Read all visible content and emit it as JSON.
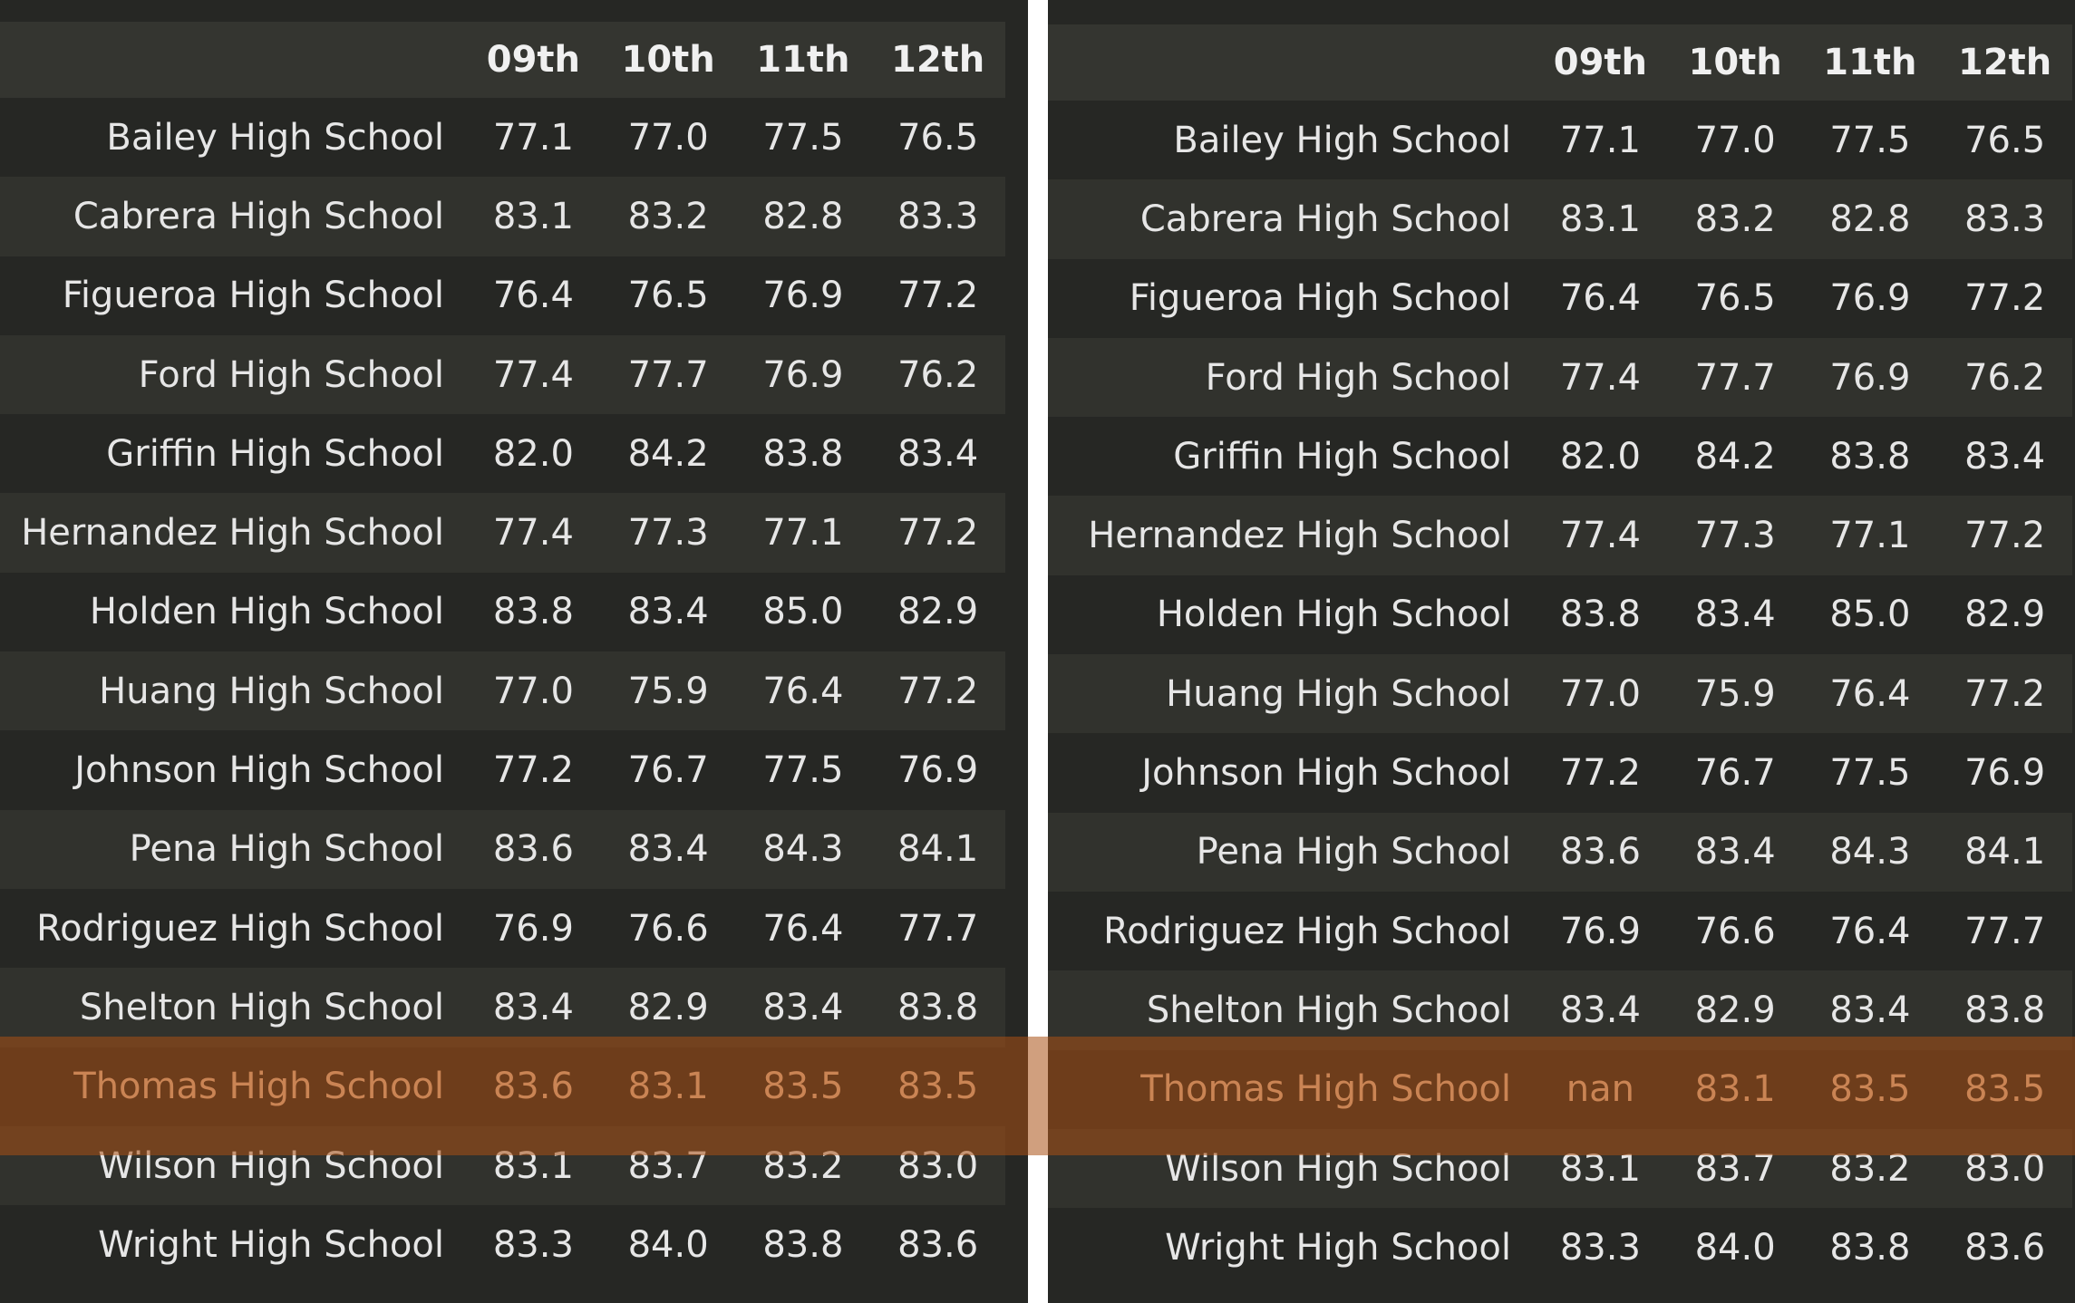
{
  "tables": [
    {
      "columns": [
        "09th",
        "10th",
        "11th",
        "12th"
      ],
      "rows": [
        {
          "school": "Bailey High School",
          "values": [
            "77.1",
            "77.0",
            "77.5",
            "76.5"
          ]
        },
        {
          "school": "Cabrera High School",
          "values": [
            "83.1",
            "83.2",
            "82.8",
            "83.3"
          ]
        },
        {
          "school": "Figueroa High School",
          "values": [
            "76.4",
            "76.5",
            "76.9",
            "77.2"
          ]
        },
        {
          "school": "Ford High School",
          "values": [
            "77.4",
            "77.7",
            "76.9",
            "76.2"
          ]
        },
        {
          "school": "Griffin High School",
          "values": [
            "82.0",
            "84.2",
            "83.8",
            "83.4"
          ]
        },
        {
          "school": "Hernandez High School",
          "values": [
            "77.4",
            "77.3",
            "77.1",
            "77.2"
          ]
        },
        {
          "school": "Holden High School",
          "values": [
            "83.8",
            "83.4",
            "85.0",
            "82.9"
          ]
        },
        {
          "school": "Huang High School",
          "values": [
            "77.0",
            "75.9",
            "76.4",
            "77.2"
          ]
        },
        {
          "school": "Johnson High School",
          "values": [
            "77.2",
            "76.7",
            "77.5",
            "76.9"
          ]
        },
        {
          "school": "Pena High School",
          "values": [
            "83.6",
            "83.4",
            "84.3",
            "84.1"
          ]
        },
        {
          "school": "Rodriguez High School",
          "values": [
            "76.9",
            "76.6",
            "76.4",
            "77.7"
          ]
        },
        {
          "school": "Shelton High School",
          "values": [
            "83.4",
            "82.9",
            "83.4",
            "83.8"
          ]
        },
        {
          "school": "Thomas High School",
          "values": [
            "83.6",
            "83.1",
            "83.5",
            "83.5"
          ]
        },
        {
          "school": "Wilson High School",
          "values": [
            "83.1",
            "83.7",
            "83.2",
            "83.0"
          ]
        },
        {
          "school": "Wright High School",
          "values": [
            "83.3",
            "84.0",
            "83.8",
            "83.6"
          ]
        }
      ]
    },
    {
      "columns": [
        "09th",
        "10th",
        "11th",
        "12th"
      ],
      "rows": [
        {
          "school": "Bailey High School",
          "values": [
            "77.1",
            "77.0",
            "77.5",
            "76.5"
          ]
        },
        {
          "school": "Cabrera High School",
          "values": [
            "83.1",
            "83.2",
            "82.8",
            "83.3"
          ]
        },
        {
          "school": "Figueroa High School",
          "values": [
            "76.4",
            "76.5",
            "76.9",
            "77.2"
          ]
        },
        {
          "school": "Ford High School",
          "values": [
            "77.4",
            "77.7",
            "76.9",
            "76.2"
          ]
        },
        {
          "school": "Griffin High School",
          "values": [
            "82.0",
            "84.2",
            "83.8",
            "83.4"
          ]
        },
        {
          "school": "Hernandez High School",
          "values": [
            "77.4",
            "77.3",
            "77.1",
            "77.2"
          ]
        },
        {
          "school": "Holden High School",
          "values": [
            "83.8",
            "83.4",
            "85.0",
            "82.9"
          ]
        },
        {
          "school": "Huang High School",
          "values": [
            "77.0",
            "75.9",
            "76.4",
            "77.2"
          ]
        },
        {
          "school": "Johnson High School",
          "values": [
            "77.2",
            "76.7",
            "77.5",
            "76.9"
          ]
        },
        {
          "school": "Pena High School",
          "values": [
            "83.6",
            "83.4",
            "84.3",
            "84.1"
          ]
        },
        {
          "school": "Rodriguez High School",
          "values": [
            "76.9",
            "76.6",
            "76.4",
            "77.7"
          ]
        },
        {
          "school": "Shelton High School",
          "values": [
            "83.4",
            "82.9",
            "83.4",
            "83.8"
          ]
        },
        {
          "school": "Thomas High School",
          "values": [
            "nan",
            "83.1",
            "83.5",
            "83.5"
          ]
        },
        {
          "school": "Wilson High School",
          "values": [
            "83.1",
            "83.7",
            "83.2",
            "83.0"
          ]
        },
        {
          "school": "Wright High School",
          "values": [
            "83.3",
            "84.0",
            "83.8",
            "83.6"
          ]
        }
      ]
    }
  ],
  "highlighted_school": "Thomas High School",
  "colors": {
    "background": "#262724",
    "row_alt": "#31322d",
    "header": "#343530",
    "text": "#e6e6e6",
    "highlight": "#aa5014"
  }
}
